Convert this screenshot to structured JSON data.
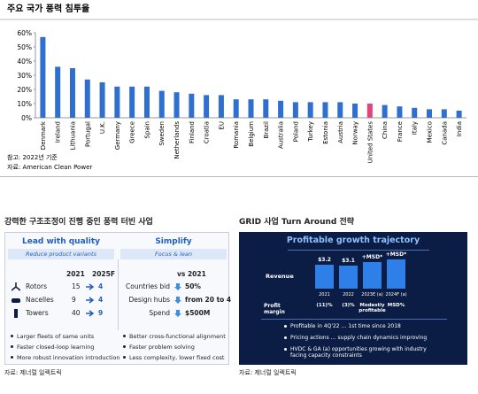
{
  "chart_data": {
    "type": "bar",
    "title": "주요 국가 풍력 침투율",
    "categories": [
      "Denmark",
      "Ireland",
      "Lithuania",
      "Portugal",
      "U.K.",
      "Germany",
      "Greece",
      "Spain",
      "Sweden",
      "Netherlands",
      "Finland",
      "Croatia",
      "EU",
      "Romania",
      "Belgium",
      "Brazil",
      "Australia",
      "Poland",
      "Turkey",
      "Estonia",
      "Austria",
      "Norway",
      "United States",
      "China",
      "France",
      "Italy",
      "Mexico",
      "Canada",
      "India"
    ],
    "values": [
      57,
      36,
      35,
      27,
      25,
      22,
      22,
      22,
      19,
      18,
      17,
      16,
      16,
      13,
      13,
      13,
      12,
      11,
      11,
      11,
      11,
      10,
      10,
      9,
      8,
      7,
      6,
      6,
      5
    ],
    "color": "#2f6fd0",
    "highlight_color": "#e0457b",
    "highlight": "United States",
    "ylim": [
      0,
      60
    ],
    "yticks": [
      {
        "value": 0,
        "label": "0%"
      },
      {
        "value": 10,
        "label": "10%"
      },
      {
        "value": 20,
        "label": "20%"
      },
      {
        "value": 30,
        "label": "30%"
      },
      {
        "value": 40,
        "label": "40%"
      },
      {
        "value": 50,
        "label": "50%"
      },
      {
        "value": 60,
        "label": "60%"
      }
    ],
    "note": "참고: 2022년 기준",
    "source": "자료: American Clean Power"
  },
  "left_panel": {
    "title": "강력한 구조조정이 진행 중인 풍력 터빈 사업",
    "quality": {
      "header": "Lead with quality",
      "subtitle": "Reduce product variants",
      "columns": [
        "2021",
        "2025F"
      ],
      "rows": [
        [
          "Rotors",
          15,
          4
        ],
        [
          "Nacelles",
          9,
          4
        ],
        [
          "Towers",
          40,
          9
        ]
      ],
      "bullets": [
        "Larger fleets of same units",
        "Faster closed-loop learning",
        "More robust innovation introduction"
      ]
    },
    "simplify": {
      "header": "Simplify",
      "subtitle": "Focus & lean",
      "column": "vs 2021",
      "rows": [
        [
          "Countries bid",
          "50%"
        ],
        [
          "Design hubs",
          "from 20 to 4"
        ],
        [
          "Spend",
          "$500M"
        ]
      ],
      "bullets": [
        "Better cross-functional alignment",
        "Faster problem solving",
        "Less complexity, lower fixed cost"
      ]
    },
    "source": "자료: 제너럴 일렉트릭"
  },
  "right_panel": {
    "title": "GRID 사업 Turn Around 전략",
    "box_title": "Profitable growth trajectory",
    "revenue_label": "Revenue",
    "margin_label": "Profit margin",
    "bars": [
      {
        "label": "$3.2",
        "year": "2021",
        "margin": "(11)%"
      },
      {
        "label": "$3.1",
        "year": "2022",
        "margin": "(3)%"
      },
      {
        "label": "+MSD*",
        "year": "2023E (a)",
        "margin": "Modestly profitable"
      },
      {
        "label": "+MSD*",
        "year": "2024F (a)",
        "margin": "MSD%"
      }
    ],
    "bullets": [
      "Profitable in 4Q'22 … 1st time since 2018",
      "Pricing actions … supply chain dynamics improving",
      "HVDC & GA (a) opportunities growing with industry facing capacity constraints"
    ],
    "source": "자료: 제너럴 일렉트릭"
  }
}
